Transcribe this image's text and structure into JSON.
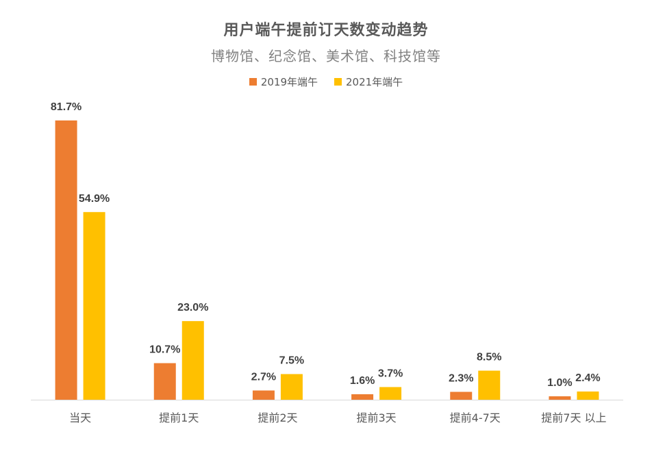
{
  "chart_data": {
    "type": "bar",
    "title": "用户端午提前订天数变动趋势",
    "subtitle": "博物馆、纪念馆、美术馆、科技馆等",
    "categories": [
      "当天",
      "提前1天",
      "提前2天",
      "提前3天",
      "提前4-7天",
      "提前7天 以上"
    ],
    "series": [
      {
        "name": "2019年端午",
        "values": [
          81.7,
          10.7,
          2.7,
          1.6,
          2.3,
          1.0
        ],
        "labels": [
          "81.7%",
          "10.7%",
          "2.7%",
          "1.6%",
          "2.3%",
          "1.0%"
        ],
        "color": "#ED7D31"
      },
      {
        "name": "2021年端午",
        "values": [
          54.9,
          23.0,
          7.5,
          3.7,
          8.5,
          2.4
        ],
        "labels": [
          "54.9%",
          "23.0%",
          "7.5%",
          "3.7%",
          "8.5%",
          "2.4%"
        ],
        "color": "#FFC000"
      }
    ],
    "ylim": [
      0,
      85
    ],
    "grid": false,
    "legend": "top-center",
    "xlabel": "",
    "ylabel": ""
  }
}
